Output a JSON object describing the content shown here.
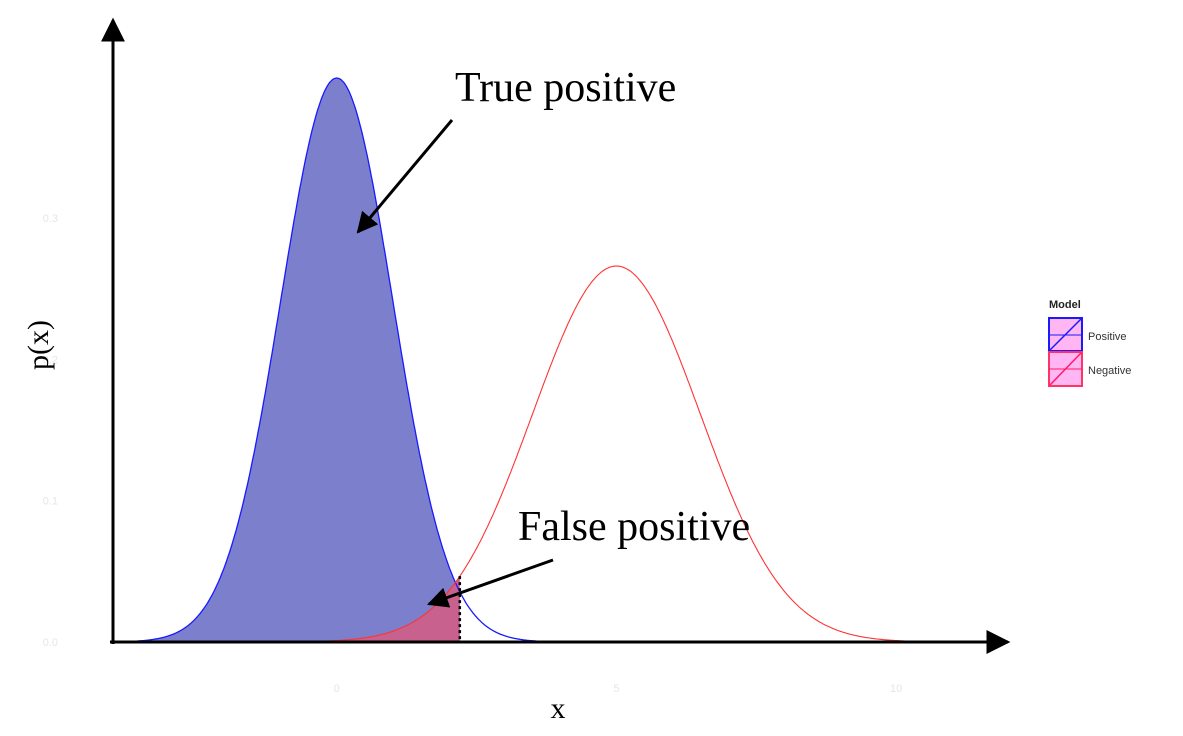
{
  "chart_data": {
    "type": "area",
    "xlabel": "x",
    "ylabel": "p(x)",
    "xlim": [
      -4,
      12
    ],
    "ylim": [
      0,
      0.44
    ],
    "x_ticks": [
      "0",
      "5",
      "10"
    ],
    "y_ticks": [
      "0.0",
      "0.1",
      "0.2",
      "0.3"
    ],
    "threshold_x": 2.2,
    "series": [
      {
        "name": "Positive",
        "distribution": "normal",
        "mean": 0,
        "sd": 1,
        "color": "#1a1aff",
        "fill": "#7b7fcc"
      },
      {
        "name": "Negative",
        "distribution": "normal",
        "mean": 5,
        "sd": 1.5,
        "color": "#ff3333",
        "fill": "#c9618f"
      }
    ],
    "legend": {
      "title": "Model",
      "position": "right",
      "items": [
        "Positive",
        "Negative"
      ]
    },
    "annotations": [
      {
        "text": "True positive"
      },
      {
        "text": "False positive"
      }
    ]
  }
}
